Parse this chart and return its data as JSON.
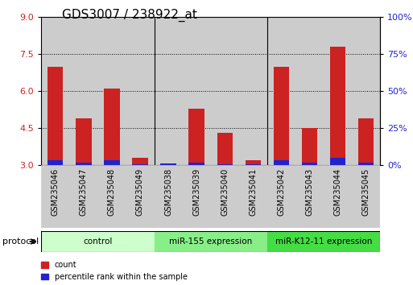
{
  "title": "GDS3007 / 238922_at",
  "samples": [
    "GSM235046",
    "GSM235047",
    "GSM235048",
    "GSM235049",
    "GSM235038",
    "GSM235039",
    "GSM235040",
    "GSM235041",
    "GSM235042",
    "GSM235043",
    "GSM235044",
    "GSM235045"
  ],
  "red_values": [
    7.0,
    4.9,
    6.1,
    3.3,
    3.05,
    5.3,
    4.3,
    3.2,
    7.0,
    4.5,
    7.8,
    4.9
  ],
  "blue_values": [
    3.22,
    3.1,
    3.22,
    3.05,
    3.08,
    3.1,
    3.05,
    3.05,
    3.22,
    3.1,
    3.3,
    3.1
  ],
  "y_min": 3.0,
  "y_max": 9.0,
  "y_ticks": [
    3,
    4.5,
    6,
    7.5,
    9
  ],
  "right_y_ticks": [
    0,
    25,
    50,
    75,
    100
  ],
  "right_y_labels": [
    "0%",
    "25%",
    "50%",
    "75%",
    "100%"
  ],
  "bar_color_red": "#cc2222",
  "bar_color_blue": "#2222cc",
  "bar_width": 0.55,
  "group_bounds": [
    [
      0,
      3,
      "#ccffcc",
      "control"
    ],
    [
      4,
      7,
      "#88ee88",
      "miR-155 expression"
    ],
    [
      8,
      11,
      "#44dd44",
      "miR-K12-11 expression"
    ]
  ],
  "protocol_label": "protocol",
  "legend_red": "count",
  "legend_blue": "percentile rank within the sample",
  "bar_bg": "#cccccc",
  "tick_label_color_left": "#cc2222",
  "tick_label_color_right": "#2222cc",
  "title_fontsize": 11,
  "axis_fontsize": 8,
  "sample_label_fontsize": 7
}
